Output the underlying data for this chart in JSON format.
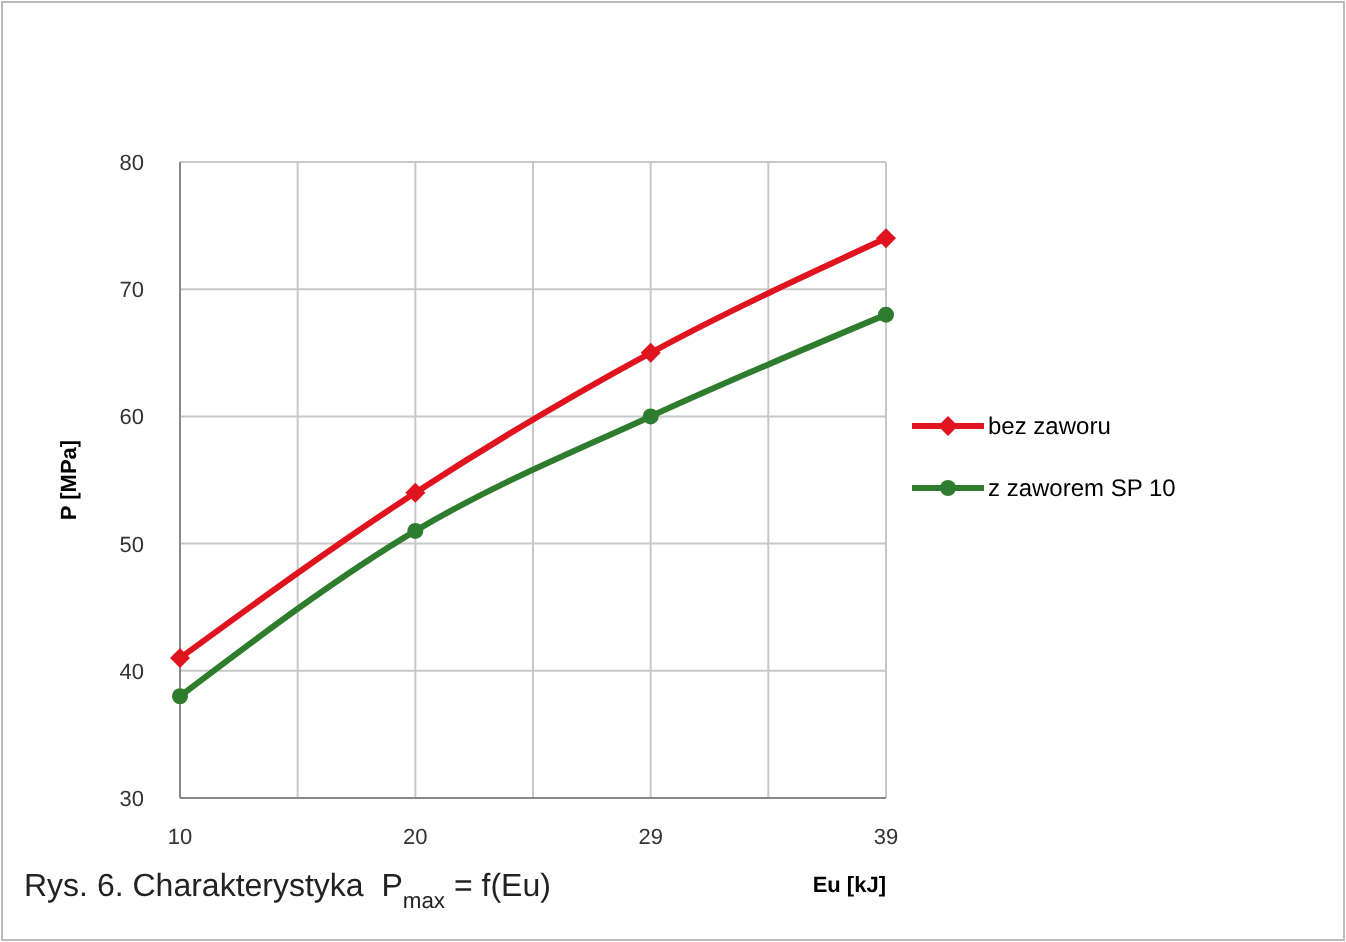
{
  "chart_data": {
    "type": "line",
    "xlabel": "Eu [kJ]",
    "ylabel": "P [MPa]",
    "categories": [
      "10",
      "20",
      "29",
      "39"
    ],
    "series": [
      {
        "name": "bez zaworu",
        "color": "#e0141e",
        "marker": "diamond",
        "values": [
          41,
          54,
          65,
          74
        ]
      },
      {
        "name": "z zaworem SP 10",
        "color": "#2e7d2e",
        "marker": "circle",
        "values": [
          38,
          51,
          60,
          68
        ]
      }
    ],
    "ylim": [
      30,
      80
    ],
    "yticks": [
      30,
      40,
      50,
      60,
      70,
      80
    ],
    "grid": true,
    "legend": "right",
    "annotations": [
      "Rys. 6. Charakterystyka  P$_{max}$ = f(Eu)"
    ]
  }
}
